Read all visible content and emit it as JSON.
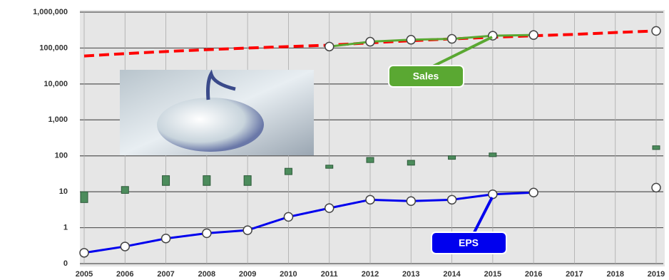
{
  "chart_data": {
    "type": "line",
    "yscale": "log",
    "grid": true,
    "x": [
      2005,
      2006,
      2007,
      2008,
      2009,
      2010,
      2011,
      2012,
      2013,
      2014,
      2015,
      2016,
      2017,
      2018,
      2019
    ],
    "xlim": [
      2005,
      2019
    ],
    "xticks": [
      2005,
      2006,
      2007,
      2008,
      2009,
      2010,
      2011,
      2012,
      2013,
      2014,
      2015,
      2016,
      2017,
      2018,
      2019
    ],
    "ylim": [
      0.1,
      1000000
    ],
    "yticks": [
      {
        "value": 0.1,
        "label": "0"
      },
      1,
      10,
      {
        "value": 100,
        "label": "100"
      },
      {
        "value": 1000,
        "label": "1,000"
      },
      {
        "value": 10000,
        "label": "10,000"
      },
      {
        "value": 100000,
        "label": "100,000"
      },
      {
        "value": 1000000,
        "label": "1,000,000"
      }
    ],
    "series": [
      {
        "color": "#ff0000",
        "dashed": true,
        "values": [
          60000,
          70000,
          80000,
          90000,
          100000,
          110000,
          120000,
          140000,
          160000,
          180000,
          200000,
          220000,
          240000,
          270000,
          300000
        ]
      },
      {
        "name": "Sales",
        "color": "#5aa832",
        "values": [
          null,
          null,
          null,
          null,
          null,
          null,
          110000,
          150000,
          170000,
          180000,
          220000,
          230000,
          null,
          null,
          300000
        ]
      },
      {
        "name": "EPS",
        "color": "#0000ee",
        "values": [
          0.2,
          0.3,
          0.5,
          0.7,
          0.85,
          2,
          3.5,
          6,
          5.5,
          6,
          8.5,
          9.5,
          null,
          null,
          13
        ]
      },
      {
        "type": "range",
        "color": "#4c8c5c",
        "low": [
          5,
          9,
          15,
          15,
          15,
          30,
          45,
          65,
          55,
          80,
          95,
          null,
          null,
          null,
          150
        ],
        "high": [
          10,
          14,
          28,
          28,
          28,
          45,
          55,
          90,
          75,
          100,
          120,
          null,
          null,
          null,
          190
        ]
      }
    ],
    "annotations": [
      {
        "text": "Sales",
        "color": "#5aa832"
      },
      {
        "text": "EPS",
        "color": "#0000ee"
      }
    ]
  }
}
